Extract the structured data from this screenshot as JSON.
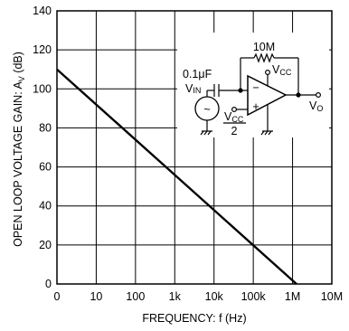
{
  "chart_data": {
    "type": "line",
    "title": "",
    "xlabel": "FREQUENCY: f (Hz)",
    "ylabel": "OPEN LOOP  VOLTAGE  GAIN: AV (dB)",
    "ylabel_main": "OPEN LOOP  VOLTAGE  GAIN: A",
    "ylabel_sub": "V",
    "ylabel_unit": " (dB)",
    "x_scale": "log",
    "x_ticks": [
      "0",
      "10",
      "100",
      "1k",
      "10k",
      "100k",
      "1M",
      "10M"
    ],
    "y_ticks": [
      "0",
      "20",
      "40",
      "60",
      "80",
      "100",
      "120",
      "140"
    ],
    "ylim": [
      0,
      140
    ],
    "grid": true,
    "series": [
      {
        "x_decade_index": [
          0,
          6.1
        ],
        "y": [
          110,
          0
        ],
        "color": "#000000"
      }
    ]
  },
  "circuit": {
    "feedback_resistor": "10M",
    "input_cap": "0.1μF",
    "vin_main": "V",
    "vin_sub": "IN",
    "vcc_top_main": "V",
    "vcc_top_sub": "CC",
    "vcc_bias_main": "V",
    "vcc_bias_sub": "CC",
    "vcc_bias_den": "2",
    "vout_main": "V",
    "vout_sub": "O",
    "minus_sign": "−",
    "plus_sign": "+",
    "source_symbol": "~"
  }
}
